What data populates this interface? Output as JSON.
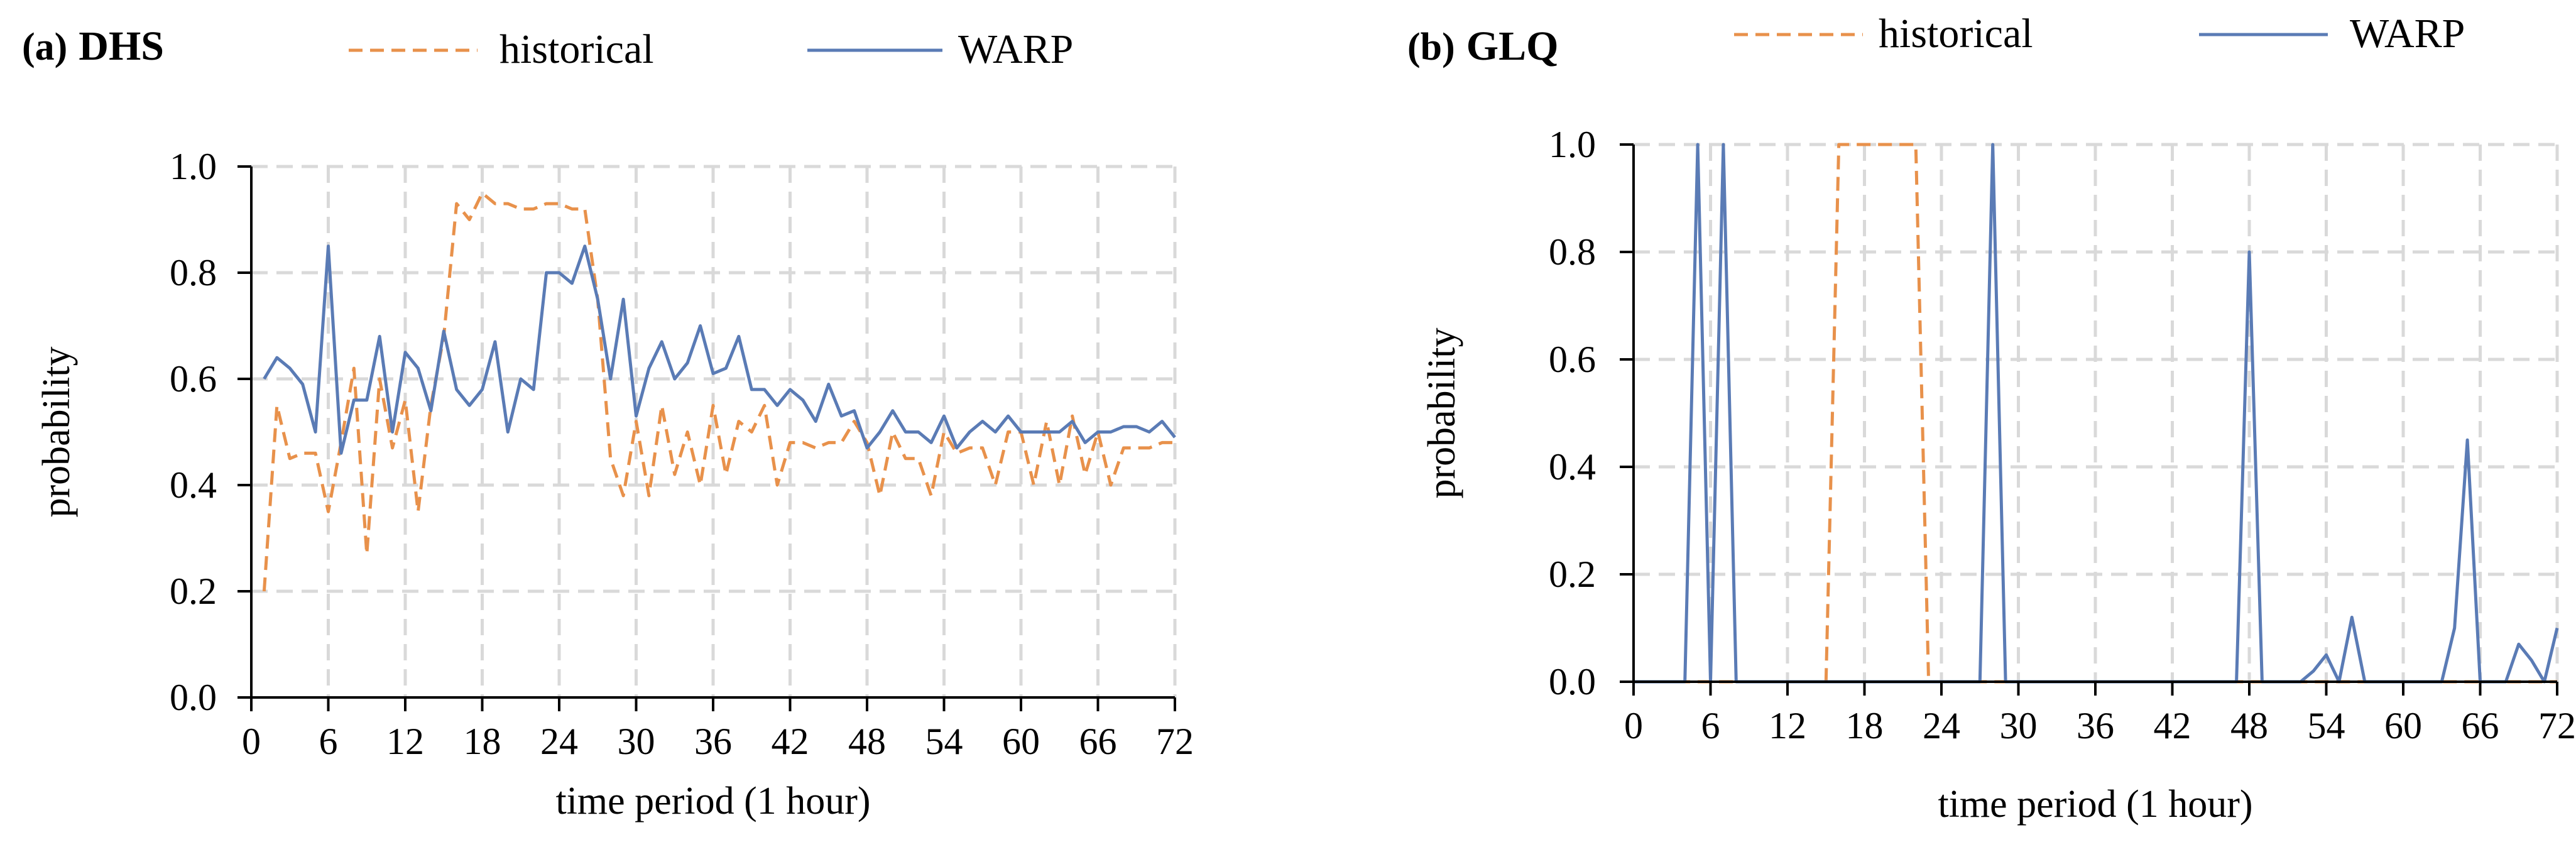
{
  "colors": {
    "historical": "#E8914B",
    "warp": "#5A7BB5",
    "grid": "#D9D9D9",
    "axis": "#000000"
  },
  "chart_data": [
    {
      "type": "line",
      "panel_label": "(a)",
      "title": "DHS",
      "xlabel": "time period (1 hour)",
      "ylabel": "probability",
      "xlim": [
        0,
        72
      ],
      "ylim": [
        0,
        1.0
      ],
      "xticks": [
        "0",
        "6",
        "12",
        "18",
        "24",
        "30",
        "36",
        "42",
        "48",
        "54",
        "60",
        "66",
        "72"
      ],
      "yticks": [
        "0.0",
        "0.2",
        "0.4",
        "0.6",
        "0.8",
        "1.0"
      ],
      "grid": true,
      "legend": "top",
      "series": [
        {
          "name": "historical",
          "style": "dashed",
          "x": [
            1,
            2,
            3,
            4,
            5,
            6,
            7,
            8,
            9,
            10,
            11,
            12,
            13,
            14,
            15,
            16,
            17,
            18,
            19,
            20,
            21,
            22,
            23,
            24,
            25,
            26,
            27,
            28,
            29,
            30,
            31,
            32,
            33,
            34,
            35,
            36,
            37,
            38,
            39,
            40,
            41,
            42,
            43,
            44,
            45,
            46,
            47,
            48,
            49,
            50,
            51,
            52,
            53,
            54,
            55,
            56,
            57,
            58,
            59,
            60,
            61,
            62,
            63,
            64,
            65,
            66,
            67,
            68,
            69,
            70,
            71,
            72
          ],
          "values": [
            0.2,
            0.55,
            0.45,
            0.46,
            0.46,
            0.35,
            0.48,
            0.62,
            0.27,
            0.6,
            0.47,
            0.56,
            0.35,
            0.55,
            0.68,
            0.93,
            0.9,
            0.95,
            0.93,
            0.93,
            0.92,
            0.92,
            0.93,
            0.93,
            0.92,
            0.92,
            0.75,
            0.45,
            0.38,
            0.52,
            0.38,
            0.55,
            0.42,
            0.5,
            0.4,
            0.55,
            0.42,
            0.52,
            0.5,
            0.55,
            0.4,
            0.48,
            0.48,
            0.47,
            0.48,
            0.48,
            0.52,
            0.48,
            0.38,
            0.5,
            0.45,
            0.45,
            0.38,
            0.5,
            0.46,
            0.47,
            0.47,
            0.4,
            0.5,
            0.5,
            0.4,
            0.52,
            0.4,
            0.53,
            0.42,
            0.5,
            0.4,
            0.47,
            0.47,
            0.47,
            0.48,
            0.48
          ]
        },
        {
          "name": "WARP",
          "style": "solid",
          "x": [
            1,
            2,
            3,
            4,
            5,
            6,
            7,
            8,
            9,
            10,
            11,
            12,
            13,
            14,
            15,
            16,
            17,
            18,
            19,
            20,
            21,
            22,
            23,
            24,
            25,
            26,
            27,
            28,
            29,
            30,
            31,
            32,
            33,
            34,
            35,
            36,
            37,
            38,
            39,
            40,
            41,
            42,
            43,
            44,
            45,
            46,
            47,
            48,
            49,
            50,
            51,
            52,
            53,
            54,
            55,
            56,
            57,
            58,
            59,
            60,
            61,
            62,
            63,
            64,
            65,
            66,
            67,
            68,
            69,
            70,
            71,
            72
          ],
          "values": [
            0.6,
            0.64,
            0.62,
            0.59,
            0.5,
            0.85,
            0.46,
            0.56,
            0.56,
            0.68,
            0.5,
            0.65,
            0.62,
            0.54,
            0.69,
            0.58,
            0.55,
            0.58,
            0.67,
            0.5,
            0.6,
            0.58,
            0.8,
            0.8,
            0.78,
            0.85,
            0.75,
            0.6,
            0.75,
            0.53,
            0.62,
            0.67,
            0.6,
            0.63,
            0.7,
            0.61,
            0.62,
            0.68,
            0.58,
            0.58,
            0.55,
            0.58,
            0.56,
            0.52,
            0.59,
            0.53,
            0.54,
            0.47,
            0.5,
            0.54,
            0.5,
            0.5,
            0.48,
            0.53,
            0.47,
            0.5,
            0.52,
            0.5,
            0.53,
            0.5,
            0.5,
            0.5,
            0.5,
            0.52,
            0.48,
            0.5,
            0.5,
            0.51,
            0.51,
            0.5,
            0.52,
            0.49
          ]
        }
      ]
    },
    {
      "type": "line",
      "panel_label": "(b)",
      "title": "GLQ",
      "xlabel": "time period (1 hour)",
      "ylabel": "probability",
      "xlim": [
        0,
        72
      ],
      "ylim": [
        0,
        1.0
      ],
      "xticks": [
        "0",
        "6",
        "12",
        "18",
        "24",
        "30",
        "36",
        "42",
        "48",
        "54",
        "60",
        "66",
        "72"
      ],
      "yticks": [
        "0.0",
        "0.2",
        "0.4",
        "0.6",
        "0.8",
        "1.0"
      ],
      "grid": true,
      "legend": "top",
      "series": [
        {
          "name": "historical",
          "style": "dashed",
          "x": [
            0,
            15,
            16,
            17,
            22,
            23,
            72
          ],
          "values": [
            0,
            0,
            1.0,
            1.0,
            1.0,
            0,
            0
          ]
        },
        {
          "name": "WARP",
          "style": "solid",
          "x": [
            0,
            4,
            5,
            6,
            7,
            8,
            27,
            28,
            29,
            47,
            48,
            49,
            52,
            53,
            54,
            55,
            56,
            57,
            63,
            64,
            65,
            66,
            68,
            69,
            70,
            71,
            72
          ],
          "values": [
            0,
            0,
            1.0,
            0,
            1.0,
            0,
            0,
            1.0,
            0,
            0,
            0.8,
            0,
            0,
            0.02,
            0.05,
            0,
            0.12,
            0,
            0,
            0.1,
            0.45,
            0,
            0,
            0.07,
            0.04,
            0,
            0.1
          ]
        }
      ]
    }
  ]
}
